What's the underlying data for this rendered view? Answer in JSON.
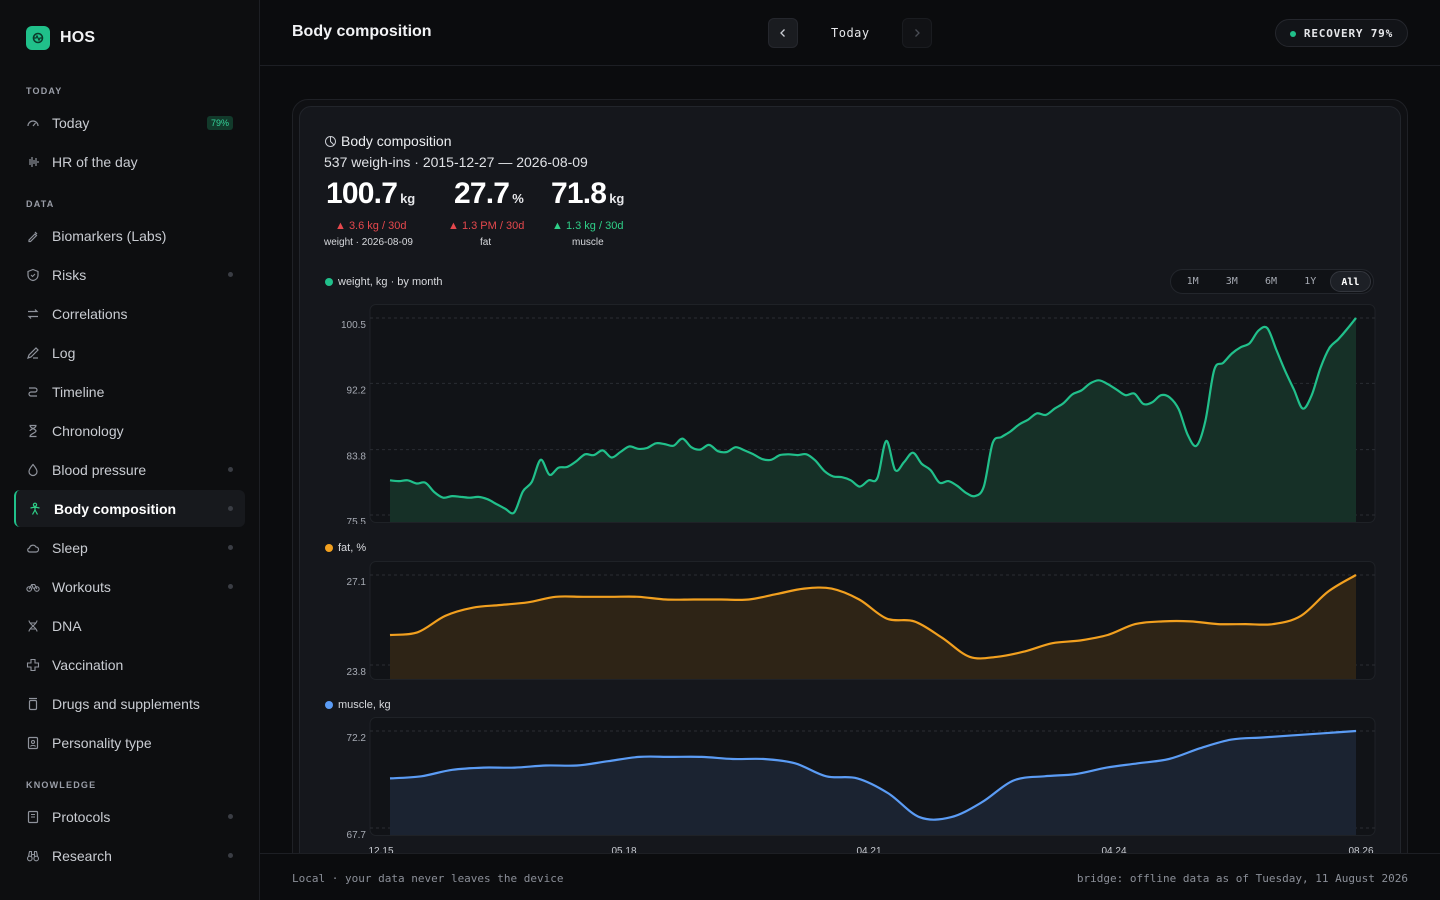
{
  "app": {
    "name": "HOS"
  },
  "sidebar": {
    "sections": [
      {
        "label": "TODAY",
        "items": [
          {
            "label": "Today",
            "icon": "gauge-icon",
            "badge": "79%"
          },
          {
            "label": "HR of the day",
            "icon": "waveform-icon"
          }
        ]
      },
      {
        "label": "DATA",
        "items": [
          {
            "label": "Biomarkers (Labs)",
            "icon": "pipette-icon"
          },
          {
            "label": "Risks",
            "icon": "shield-icon",
            "dot": true
          },
          {
            "label": "Correlations",
            "icon": "arrows-swap-icon"
          },
          {
            "label": "Log",
            "icon": "pencil-icon"
          },
          {
            "label": "Timeline",
            "icon": "route-icon"
          },
          {
            "label": "Chronology",
            "icon": "hourglass-icon"
          },
          {
            "label": "Blood pressure",
            "icon": "droplet-icon",
            "dot": true
          },
          {
            "label": "Body composition",
            "icon": "person-icon",
            "dot": true,
            "active": true
          },
          {
            "label": "Sleep",
            "icon": "cloud-icon",
            "dot": true
          },
          {
            "label": "Workouts",
            "icon": "bike-icon",
            "dot": true
          },
          {
            "label": "DNA",
            "icon": "dna-icon"
          },
          {
            "label": "Vaccination",
            "icon": "cross-icon"
          },
          {
            "label": "Drugs and supplements",
            "icon": "pill-bottle-icon"
          },
          {
            "label": "Personality type",
            "icon": "id-badge-icon"
          }
        ]
      },
      {
        "label": "KNOWLEDGE",
        "items": [
          {
            "label": "Protocols",
            "icon": "book-icon",
            "dot": true
          },
          {
            "label": "Research",
            "icon": "binoculars-icon",
            "dot": true
          }
        ]
      }
    ]
  },
  "header": {
    "title": "Body composition",
    "date_label": "Today",
    "recovery": "RECOVERY 79%",
    "accent": "#20c08a"
  },
  "card": {
    "title": "Body composition",
    "subtitle": "537 weigh-ins · 2015-12-27 — 2026-08-09",
    "stats": [
      {
        "value": "100.7",
        "unit": "kg",
        "delta": "▲ 3.6 kg / 30d",
        "delta_color": "red",
        "caption": "weight · 2026-08-09"
      },
      {
        "value": "27.7",
        "unit": "%",
        "delta": "▲ 1.3 PM / 30d",
        "delta_color": "red",
        "caption": "fat"
      },
      {
        "value": "71.8",
        "unit": "kg",
        "delta": "▲ 1.3 kg / 30d",
        "delta_color": "green",
        "caption": "muscle"
      }
    ],
    "range_options": [
      "1M",
      "3M",
      "6M",
      "1Y",
      "All"
    ],
    "range_selected": "All"
  },
  "chart_data": [
    {
      "type": "area",
      "legend": "weight, kg · by month",
      "color": "#21c08b",
      "y_ticks": [
        "100.5",
        "92.2",
        "83.8",
        "75.5"
      ],
      "ylim": [
        75.5,
        100.5
      ],
      "values": [
        79.9,
        79.8,
        79.9,
        79.5,
        79.6,
        78.4,
        77.7,
        77.9,
        77.8,
        77.7,
        77.8,
        77.5,
        76.9,
        76.3,
        75.8,
        78.5,
        79.7,
        82.5,
        80.6,
        81.5,
        81.6,
        82.3,
        83.2,
        83.1,
        83.7,
        82.8,
        83.5,
        84.2,
        83.9,
        84.0,
        84.6,
        84.5,
        84.3,
        85.2,
        84.1,
        83.8,
        84.4,
        83.6,
        83.5,
        84.1,
        83.7,
        83.2,
        82.6,
        82.5,
        83.1,
        83.2,
        83.1,
        83.2,
        82.4,
        81.1,
        80.4,
        80.3,
        79.9,
        79.1,
        79.9,
        80.2,
        84.9,
        81.2,
        82.2,
        83.4,
        82.0,
        81.2,
        79.6,
        79.8,
        79.2,
        78.3,
        77.9,
        79.1,
        84.6,
        85.4,
        86.1,
        87.0,
        87.6,
        88.4,
        88.2,
        89.0,
        89.7,
        90.8,
        91.3,
        92.2,
        92.6,
        92.1,
        91.4,
        90.7,
        90.9,
        89.6,
        89.8,
        90.7,
        90.4,
        88.9,
        85.7,
        84.3,
        87.4,
        93.9,
        94.8,
        96.0,
        96.8,
        97.3,
        98.9,
        99.2,
        96.5,
        93.8,
        91.4,
        89.0,
        90.7,
        94.2,
        96.7,
        97.8,
        99.1,
        100.5
      ]
    },
    {
      "type": "area",
      "legend": "fat, %",
      "color": "#f2a01f",
      "y_ticks": [
        "27.1",
        "23.8"
      ],
      "ylim": [
        23.8,
        27.1
      ],
      "values": [
        24.9,
        25.0,
        25.6,
        25.9,
        26.0,
        26.1,
        26.3,
        26.3,
        26.3,
        26.3,
        26.2,
        26.2,
        26.2,
        26.2,
        26.4,
        26.6,
        26.6,
        26.2,
        25.5,
        25.4,
        24.8,
        24.1,
        24.1,
        24.3,
        24.6,
        24.7,
        24.9,
        25.3,
        25.4,
        25.4,
        25.3,
        25.3,
        25.3,
        25.6,
        26.5,
        27.1
      ]
    },
    {
      "type": "area",
      "legend": "muscle, kg",
      "color": "#5b9cf5",
      "y_ticks": [
        "72.2",
        "67.7"
      ],
      "ylim": [
        67.7,
        72.2
      ],
      "values": [
        70.0,
        70.1,
        70.4,
        70.5,
        70.5,
        70.6,
        70.6,
        70.8,
        71.0,
        71.0,
        71.0,
        70.9,
        70.9,
        70.7,
        70.1,
        70.0,
        69.3,
        68.2,
        68.2,
        68.9,
        69.9,
        70.1,
        70.2,
        70.5,
        70.7,
        70.9,
        71.4,
        71.8,
        71.9,
        72.0,
        72.1,
        72.2
      ],
      "x_ticks": [
        "12.15",
        "05.18",
        "04.21",
        "04.24",
        "08.26"
      ]
    }
  ],
  "footer": {
    "left": "Local · your data never leaves the device",
    "right": "bridge: offline  data as of Tuesday, 11 August 2026"
  }
}
